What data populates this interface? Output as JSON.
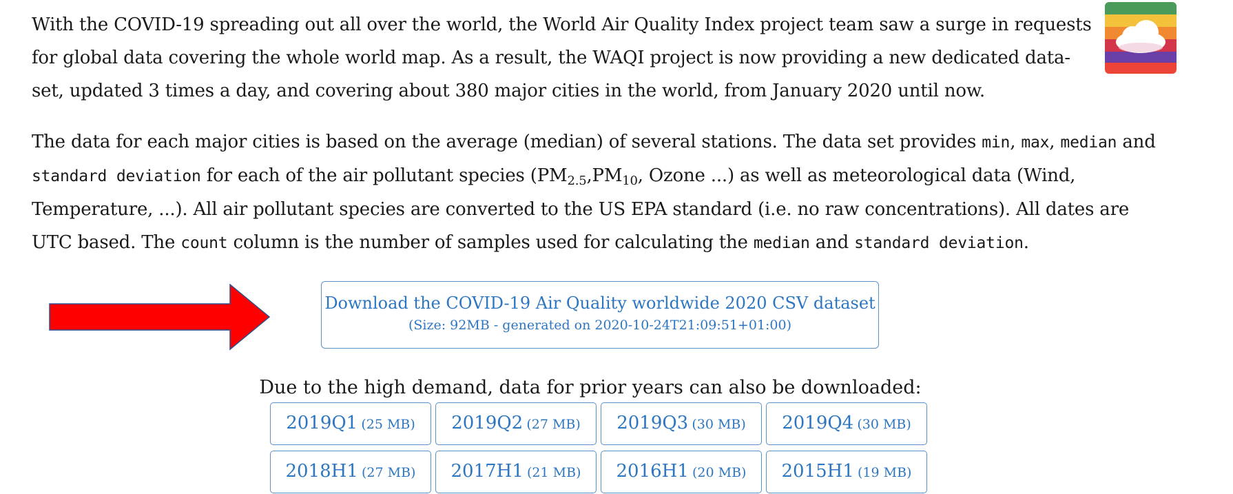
{
  "intro": {
    "paragraph1": "With the COVID-19 spreading out all over the world, the World Air Quality Index project team saw a surge in requests for global data covering the whole world map. As a result, the WAQI project is now providing a new dedicated data-set, updated 3 times a day, and covering about 380 major cities in the world, from January 2020 until now.",
    "p2_a": "The data for each major cities is based on the average (median) of several stations. The data set provides ",
    "code_min": "min",
    "sep1": ", ",
    "code_max": "max",
    "sep2": ", ",
    "code_median": "median",
    "p2_b": " and ",
    "code_std": "standard deviation",
    "p2_c": " for each of the air pollutant species (PM",
    "sub_25": "2.5",
    "p2_d": ",PM",
    "sub_10": "10",
    "p2_e": ", Ozone ...) as well as meteorological data (Wind, Temperature, ...). All air pollutant species are converted to the US EPA standard (i.e. no raw concentrations). All dates are UTC based. The ",
    "code_count": "count",
    "p2_f": " column is the number of samples used for calculating the ",
    "code_median2": "median",
    "p2_g": " and ",
    "code_std2": "standard deviation",
    "p2_h": "."
  },
  "download": {
    "title": "Download the COVID-19 Air Quality worldwide 2020 CSV dataset",
    "subtitle": "(Size: 92MB - generated on 2020-10-24T21:09:51+01:00)"
  },
  "prior": {
    "text": "Due to the high demand, data for prior years can also be downloaded:",
    "buttons": [
      {
        "label": "2019Q1",
        "size": "(25 MB)"
      },
      {
        "label": "2019Q2",
        "size": "(27 MB)"
      },
      {
        "label": "2019Q3",
        "size": "(30 MB)"
      },
      {
        "label": "2019Q4",
        "size": "(30 MB)"
      },
      {
        "label": "2018H1",
        "size": "(27 MB)"
      },
      {
        "label": "2017H1",
        "size": "(21 MB)"
      },
      {
        "label": "2016H1",
        "size": "(20 MB)"
      },
      {
        "label": "2015H1",
        "size": "(19 MB)"
      }
    ]
  },
  "colors": {
    "link": "#2d76c2",
    "border": "#5a8fc8",
    "arrow": "#ff0000",
    "arrow_outline": "#2f4f8f"
  },
  "icons": {
    "logo": "rainbow-cloud-logo-icon",
    "arrow": "right-arrow-icon"
  }
}
